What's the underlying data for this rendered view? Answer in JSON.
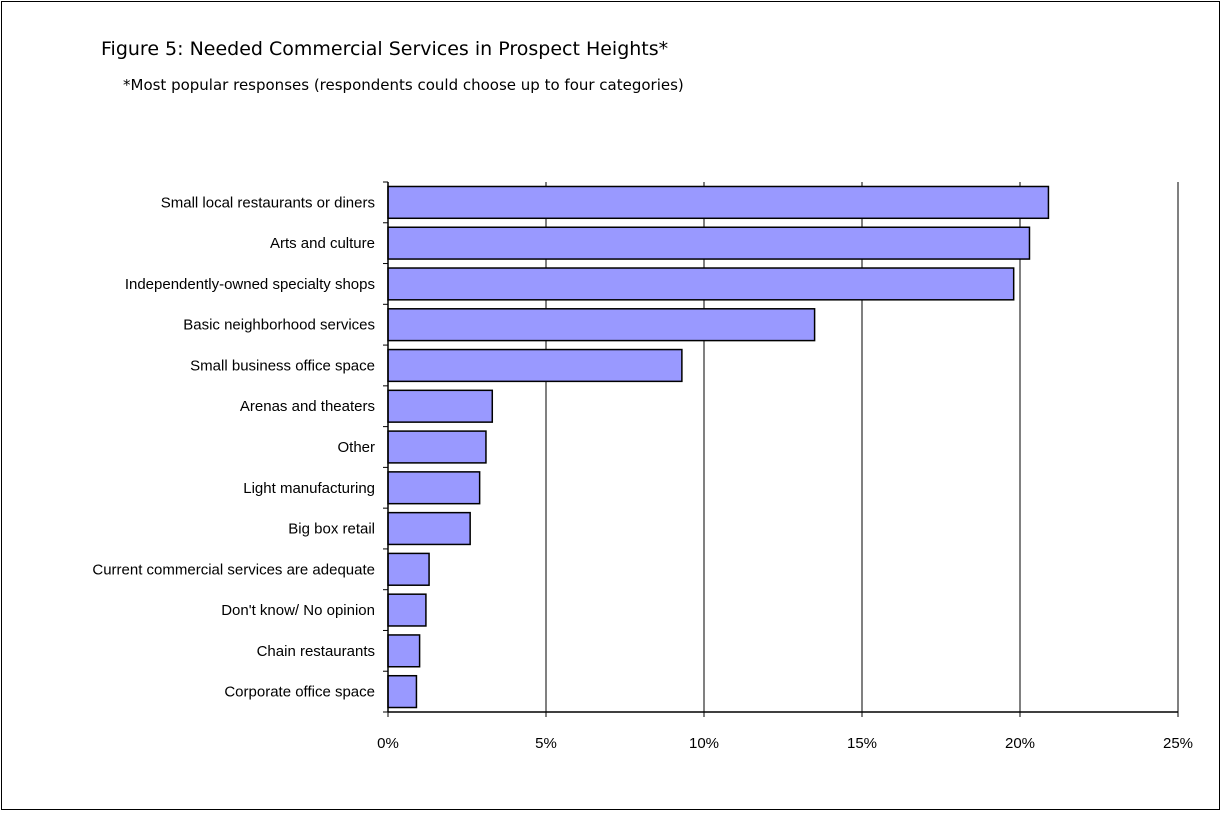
{
  "chart_data": {
    "type": "bar",
    "orientation": "horizontal",
    "title": "Figure 5: Needed Commercial Services in Prospect Heights*",
    "subtitle": "*Most popular responses (respondents could choose up to four categories)",
    "categories": [
      "Small local restaurants or diners",
      "Arts and culture",
      "Independently-owned specialty shops",
      "Basic neighborhood services",
      "Small business office space",
      "Arenas and theaters",
      "Other",
      "Light manufacturing",
      "Big box retail",
      "Current commercial services are adequate",
      "Don't know/ No opinion",
      "Chain restaurants",
      "Corporate office space"
    ],
    "values": [
      20.9,
      20.3,
      19.8,
      13.5,
      9.3,
      3.3,
      3.1,
      2.9,
      2.6,
      1.3,
      1.2,
      1.0,
      0.9
    ],
    "xlim": [
      0,
      25
    ],
    "xticks": [
      0,
      5,
      10,
      15,
      20,
      25
    ],
    "tick_labels": [
      "0%",
      "5%",
      "10%",
      "15%",
      "20%",
      "25%"
    ],
    "grid": "vertical",
    "bar_color": "#9999ff",
    "bar_edge_color": "#000000"
  }
}
